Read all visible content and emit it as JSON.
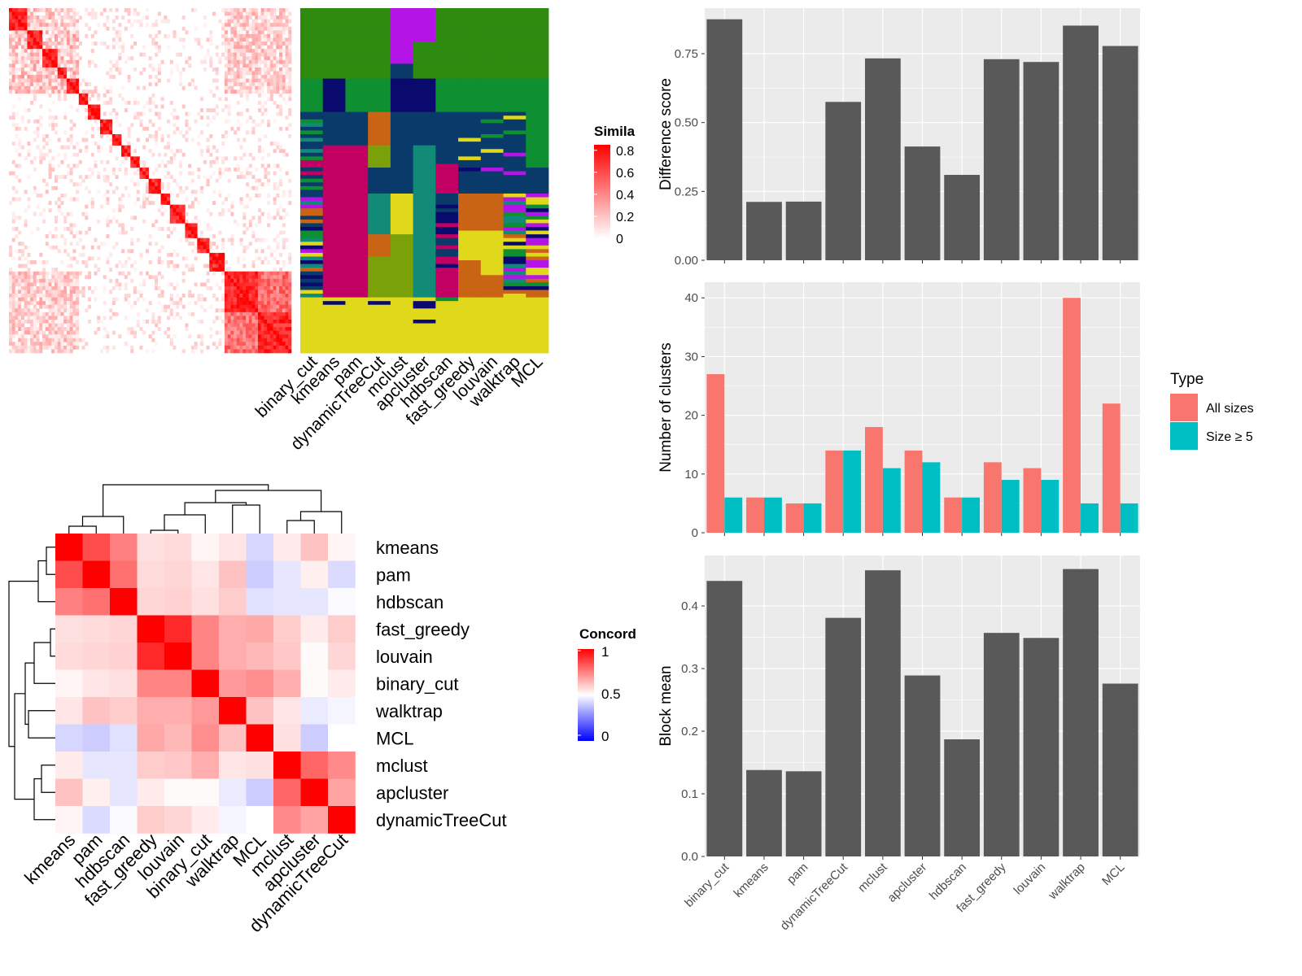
{
  "colors": {
    "bar_dark": "#595959",
    "panel_bg": "#ebebeb",
    "grid": "#ffffff",
    "all_sizes": "#F8766D",
    "size_ge5": "#00BFC4",
    "sim_low": "#ffffff",
    "sim_high": "#ff0000",
    "conc_low": "#0000ff",
    "conc_mid": "#ffffff",
    "conc_high": "#ff0000",
    "class_palette": [
      "#2f8a10",
      "#b414e6",
      "#0e8f32",
      "#0a3a6a",
      "#c20064",
      "#c86414",
      "#e0d81a",
      "#0a0a6e",
      "#7aa00a",
      "#128a78",
      "#1e6ec8",
      "#b4c800"
    ]
  },
  "methods": [
    "binary_cut",
    "kmeans",
    "pam",
    "dynamicTreeCut",
    "mclust",
    "apcluster",
    "hdbscan",
    "fast_greedy",
    "louvain",
    "walktrap",
    "MCL"
  ],
  "similarity_legend": {
    "title": "Simila",
    "ticks": [
      "0.8",
      "0.6",
      "0.4",
      "0.2",
      "0"
    ]
  },
  "concordance_legend": {
    "title": "Concord",
    "ticks": [
      "1",
      "0.5",
      "0"
    ]
  },
  "chart_data": [
    {
      "type": "heatmap",
      "description_panel": "similarity-matrix",
      "legend": "similarity_legend",
      "range": [
        0,
        0.8
      ],
      "diagonal_blocks": [
        [
          0,
          6
        ],
        [
          6,
          11
        ],
        [
          11,
          16
        ],
        [
          16,
          19
        ],
        [
          19,
          23
        ],
        [
          23,
          26
        ],
        [
          26,
          30
        ],
        [
          30,
          34
        ],
        [
          34,
          37
        ],
        [
          37,
          40
        ],
        [
          40,
          43
        ],
        [
          43,
          46
        ],
        [
          46,
          50
        ],
        [
          50,
          53
        ],
        [
          53,
          58
        ],
        [
          58,
          62
        ],
        [
          62,
          66
        ],
        [
          66,
          71
        ],
        [
          71,
          82
        ],
        [
          82,
          93
        ]
      ]
    },
    {
      "type": "heatmap",
      "description_panel": "cluster-assignment",
      "columns": [
        "binary_cut",
        "kmeans",
        "pam",
        "dynamicTreeCut",
        "mclust",
        "apcluster",
        "hdbscan",
        "fast_greedy",
        "louvain",
        "walktrap",
        "MCL"
      ]
    },
    {
      "type": "heatmap",
      "description_panel": "concordance",
      "legend": "concordance_legend",
      "order": [
        "kmeans",
        "pam",
        "hdbscan",
        "fast_greedy",
        "louvain",
        "binary_cut",
        "walktrap",
        "MCL",
        "mclust",
        "apcluster",
        "dynamicTreeCut"
      ],
      "values": [
        [
          1.0,
          0.85,
          0.75,
          0.56,
          0.57,
          0.52,
          0.55,
          0.42,
          0.54,
          0.62,
          0.52
        ],
        [
          0.85,
          1.0,
          0.78,
          0.57,
          0.58,
          0.55,
          0.62,
          0.4,
          0.45,
          0.53,
          0.43
        ],
        [
          0.75,
          0.78,
          1.0,
          0.58,
          0.59,
          0.56,
          0.6,
          0.44,
          0.45,
          0.45,
          0.49
        ],
        [
          0.56,
          0.57,
          0.58,
          1.0,
          0.92,
          0.74,
          0.66,
          0.67,
          0.6,
          0.54,
          0.6
        ],
        [
          0.57,
          0.58,
          0.59,
          0.92,
          1.0,
          0.74,
          0.66,
          0.64,
          0.61,
          0.51,
          0.58
        ],
        [
          0.52,
          0.55,
          0.56,
          0.74,
          0.74,
          1.0,
          0.7,
          0.72,
          0.66,
          0.51,
          0.54
        ],
        [
          0.55,
          0.62,
          0.6,
          0.66,
          0.66,
          0.7,
          1.0,
          0.62,
          0.55,
          0.46,
          0.48
        ],
        [
          0.42,
          0.4,
          0.44,
          0.67,
          0.64,
          0.72,
          0.62,
          1.0,
          0.56,
          0.4,
          0.5
        ],
        [
          0.54,
          0.45,
          0.45,
          0.6,
          0.61,
          0.66,
          0.55,
          0.56,
          1.0,
          0.8,
          0.73
        ],
        [
          0.62,
          0.53,
          0.45,
          0.54,
          0.51,
          0.51,
          0.46,
          0.4,
          0.8,
          1.0,
          0.68
        ],
        [
          0.52,
          0.43,
          0.49,
          0.6,
          0.58,
          0.54,
          0.48,
          0.5,
          0.73,
          0.68,
          1.0
        ]
      ]
    },
    {
      "type": "bar",
      "categories": [
        "binary_cut",
        "kmeans",
        "pam",
        "dynamicTreeCut",
        "mclust",
        "apcluster",
        "hdbscan",
        "fast_greedy",
        "louvain",
        "walktrap",
        "MCL"
      ],
      "values": [
        0.875,
        0.212,
        0.213,
        0.575,
        0.733,
        0.413,
        0.31,
        0.73,
        0.72,
        0.852,
        0.778
      ],
      "xlabel": "",
      "ylabel": "Difference score",
      "ylim": [
        0,
        0.88
      ],
      "yticks": [
        "0.00",
        "0.25",
        "0.50",
        "0.75"
      ]
    },
    {
      "type": "bar",
      "categories": [
        "binary_cut",
        "kmeans",
        "pam",
        "dynamicTreeCut",
        "mclust",
        "apcluster",
        "hdbscan",
        "fast_greedy",
        "louvain",
        "walktrap",
        "MCL"
      ],
      "series": [
        {
          "name": "All sizes",
          "values": [
            27,
            6,
            5,
            14,
            18,
            14,
            6,
            12,
            11,
            40,
            22
          ]
        },
        {
          "name": "Size ≥ 5",
          "values": [
            6,
            6,
            5,
            14,
            11,
            12,
            6,
            9,
            9,
            5,
            5
          ]
        }
      ],
      "xlabel": "",
      "ylabel": "Number of clusters",
      "ylim": [
        0,
        41
      ],
      "yticks": [
        "0",
        "10",
        "20",
        "30",
        "40"
      ],
      "legend_title": "Type",
      "legend_position": "right"
    },
    {
      "type": "bar",
      "categories": [
        "binary_cut",
        "kmeans",
        "pam",
        "dynamicTreeCut",
        "mclust",
        "apcluster",
        "hdbscan",
        "fast_greedy",
        "louvain",
        "walktrap",
        "MCL"
      ],
      "values": [
        0.44,
        0.138,
        0.136,
        0.381,
        0.457,
        0.289,
        0.187,
        0.357,
        0.349,
        0.459,
        0.276
      ],
      "xlabel": "",
      "ylabel": "Block mean",
      "ylim": [
        0,
        0.465
      ],
      "yticks": [
        "0.0",
        "0.1",
        "0.2",
        "0.3",
        "0.4"
      ]
    }
  ]
}
